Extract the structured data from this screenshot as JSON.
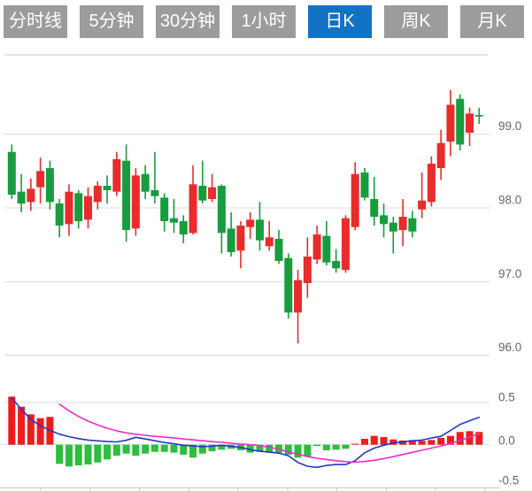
{
  "toolbar": {
    "tabs": [
      {
        "label": "分时线",
        "active": false
      },
      {
        "label": "5分钟",
        "active": false
      },
      {
        "label": "30分钟",
        "active": false
      },
      {
        "label": "1小时",
        "active": false
      },
      {
        "label": "日K",
        "active": true
      },
      {
        "label": "周K",
        "active": false
      },
      {
        "label": "月K",
        "active": false
      }
    ]
  },
  "chart_data": {
    "type": "candlestick",
    "panels": [
      "price-kline",
      "macd-indicator"
    ],
    "legend_position": "none",
    "grid": true,
    "price_axis": {
      "side": "right",
      "tick_labels": [
        "99.0",
        "98.0",
        "97.0",
        "96.0"
      ],
      "tick_values": [
        99.0,
        98.0,
        97.0,
        96.0
      ],
      "visible_range": [
        95.85,
        100.08
      ]
    },
    "macd_axis": {
      "side": "right",
      "tick_labels": [
        "0.5",
        "0.0",
        "-0.5"
      ],
      "tick_values": [
        0.5,
        0.0,
        -0.5
      ],
      "visible_range": [
        -0.52,
        0.6
      ]
    },
    "candles_ochl_note": "arrays are [open, close, high, low]; close>=open renders red (rise), close<open renders green (fall)",
    "candles": [
      [
        98.76,
        98.18,
        98.86,
        98.12
      ],
      [
        98.22,
        98.06,
        98.46,
        97.94
      ],
      [
        98.08,
        98.26,
        98.4,
        97.96
      ],
      [
        98.28,
        98.5,
        98.68,
        98.06
      ],
      [
        98.54,
        98.08,
        98.64,
        97.98
      ],
      [
        98.06,
        97.76,
        98.12,
        97.6
      ],
      [
        97.78,
        98.22,
        98.32,
        97.62
      ],
      [
        98.2,
        97.82,
        98.24,
        97.72
      ],
      [
        97.84,
        98.16,
        98.28,
        97.72
      ],
      [
        98.08,
        98.3,
        98.36,
        97.98
      ],
      [
        98.3,
        98.24,
        98.44,
        98.06
      ],
      [
        98.22,
        98.66,
        98.76,
        98.16
      ],
      [
        98.64,
        97.7,
        98.86,
        97.54
      ],
      [
        97.72,
        98.44,
        98.54,
        97.62
      ],
      [
        98.46,
        98.22,
        98.58,
        98.12
      ],
      [
        98.24,
        98.16,
        98.76,
        98.06
      ],
      [
        98.14,
        97.82,
        98.2,
        97.68
      ],
      [
        97.86,
        97.8,
        98.12,
        97.66
      ],
      [
        97.82,
        97.64,
        97.9,
        97.52
      ],
      [
        97.66,
        98.32,
        98.58,
        97.64
      ],
      [
        98.3,
        98.1,
        98.64,
        98.06
      ],
      [
        98.12,
        98.28,
        98.46,
        98.08
      ],
      [
        98.3,
        97.66,
        98.32,
        97.38
      ],
      [
        97.72,
        97.4,
        97.94,
        97.34
      ],
      [
        97.42,
        97.76,
        97.82,
        97.18
      ],
      [
        97.74,
        97.84,
        97.94,
        97.58
      ],
      [
        97.84,
        97.56,
        98.08,
        97.42
      ],
      [
        97.48,
        97.6,
        97.82,
        97.42
      ],
      [
        97.58,
        97.28,
        97.7,
        97.24
      ],
      [
        97.32,
        96.58,
        97.38,
        96.5
      ],
      [
        96.58,
        97.02,
        97.16,
        96.16
      ],
      [
        96.98,
        97.34,
        97.6,
        96.78
      ],
      [
        97.3,
        97.64,
        97.76,
        97.24
      ],
      [
        97.62,
        97.26,
        97.82,
        97.22
      ],
      [
        97.28,
        97.18,
        97.44,
        97.12
      ],
      [
        97.16,
        97.86,
        97.9,
        97.12
      ],
      [
        97.74,
        98.46,
        98.62,
        97.7
      ],
      [
        98.48,
        98.14,
        98.54,
        98.1
      ],
      [
        98.12,
        97.88,
        98.42,
        97.76
      ],
      [
        97.9,
        97.78,
        98.06,
        97.6
      ],
      [
        97.8,
        97.68,
        97.88,
        97.38
      ],
      [
        97.7,
        97.88,
        98.12,
        97.48
      ],
      [
        97.86,
        97.68,
        97.96,
        97.6
      ],
      [
        97.98,
        98.1,
        98.48,
        97.86
      ],
      [
        98.08,
        98.6,
        98.7,
        98.02
      ],
      [
        98.54,
        98.88,
        99.06,
        98.38
      ],
      [
        98.9,
        99.4,
        99.6,
        98.7
      ],
      [
        99.48,
        98.86,
        99.54,
        98.78
      ],
      [
        99.02,
        99.28,
        99.36,
        98.84
      ],
      [
        99.26,
        99.24,
        99.36,
        99.14
      ]
    ],
    "macd": {
      "histogram": [
        0.57,
        0.45,
        0.36,
        0.315,
        0.33,
        -0.226,
        -0.258,
        -0.244,
        -0.234,
        -0.21,
        -0.174,
        -0.13,
        -0.105,
        -0.13,
        -0.105,
        -0.084,
        -0.084,
        -0.094,
        -0.118,
        -0.153,
        -0.105,
        -0.077,
        -0.059,
        -0.048,
        -0.066,
        -0.094,
        -0.084,
        -0.09,
        -0.094,
        -0.118,
        -0.153,
        -0.14,
        -0.015,
        -0.066,
        -0.059,
        -0.048,
        0.012,
        0.07,
        0.105,
        0.091,
        0.063,
        0.05,
        0.056,
        0.046,
        0.056,
        0.081,
        0.105,
        0.151,
        0.161,
        0.151
      ],
      "dif": [
        0.555,
        0.42,
        0.3,
        0.225,
        0.17,
        0.125,
        0.095,
        0.072,
        0.056,
        0.046,
        0.038,
        0.034,
        0.052,
        0.088,
        0.068,
        0.047,
        0.026,
        0.012,
        -0.006,
        -0.015,
        -0.024,
        -0.017,
        -0.007,
        -0.018,
        -0.033,
        -0.058,
        -0.078,
        -0.088,
        -0.1,
        -0.13,
        -0.21,
        -0.255,
        -0.268,
        -0.245,
        -0.235,
        -0.235,
        -0.19,
        -0.095,
        -0.04,
        -0.006,
        0.02,
        0.035,
        0.046,
        0.056,
        0.08,
        0.1,
        0.17,
        0.24,
        0.285,
        0.325
      ],
      "dea": [
        null,
        null,
        null,
        null,
        null,
        0.48,
        0.4,
        0.335,
        0.28,
        0.235,
        0.195,
        0.165,
        0.14,
        0.125,
        0.112,
        0.1,
        0.09,
        0.08,
        0.068,
        0.058,
        0.047,
        0.037,
        0.028,
        0.018,
        0.008,
        0.0,
        -0.012,
        -0.028,
        -0.055,
        -0.085,
        -0.112,
        -0.14,
        -0.16,
        -0.175,
        -0.19,
        -0.2,
        -0.208,
        -0.198,
        -0.185,
        -0.165,
        -0.142,
        -0.115,
        -0.09,
        -0.065,
        -0.04,
        -0.015,
        0.015,
        0.05,
        0.09,
        0.13
      ]
    },
    "colors": {
      "up": "#e82c2c",
      "down": "#189c3e",
      "hist_up": "#ee1c1c",
      "hist_down": "#2dbe3d",
      "dif_line": "#2438c4",
      "dea_line": "#ee2cc8",
      "grid": "#dcdcdc",
      "border": "#c9c9c9",
      "axis_label": "#666666",
      "tab_bg": "#9c9c9c",
      "tab_active_bg": "#1272c4",
      "tab_text": "#ffffff",
      "background": "#ffffff"
    }
  }
}
